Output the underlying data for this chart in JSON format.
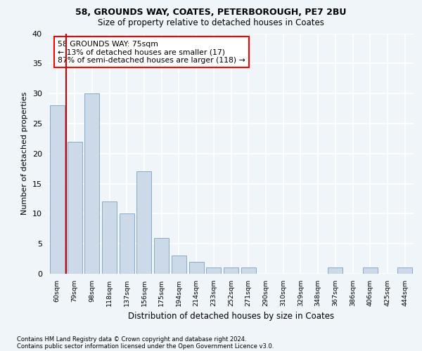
{
  "title1": "58, GROUNDS WAY, COATES, PETERBOROUGH, PE7 2BU",
  "title2": "Size of property relative to detached houses in Coates",
  "xlabel": "Distribution of detached houses by size in Coates",
  "ylabel": "Number of detached properties",
  "categories": [
    "60sqm",
    "79sqm",
    "98sqm",
    "118sqm",
    "137sqm",
    "156sqm",
    "175sqm",
    "194sqm",
    "214sqm",
    "233sqm",
    "252sqm",
    "271sqm",
    "290sqm",
    "310sqm",
    "329sqm",
    "348sqm",
    "367sqm",
    "386sqm",
    "406sqm",
    "425sqm",
    "444sqm"
  ],
  "values": [
    28,
    22,
    30,
    12,
    10,
    17,
    6,
    3,
    2,
    1,
    1,
    1,
    0,
    0,
    0,
    0,
    1,
    0,
    1,
    0,
    1
  ],
  "bar_color": "#ccd9e8",
  "bar_edge_color": "#8aaac8",
  "highlight_line_color": "#cc0000",
  "annotation_line1": "58 GROUNDS WAY: 75sqm",
  "annotation_line2": "← 13% of detached houses are smaller (17)",
  "annotation_line3": "87% of semi-detached houses are larger (118) →",
  "footer1": "Contains HM Land Registry data © Crown copyright and database right 2024.",
  "footer2": "Contains public sector information licensed under the Open Government Licence v3.0.",
  "ylim": [
    0,
    40
  ],
  "yticks": [
    0,
    5,
    10,
    15,
    20,
    25,
    30,
    35,
    40
  ],
  "plot_bg_color": "#f0f5f9",
  "grid_color": "#ffffff"
}
